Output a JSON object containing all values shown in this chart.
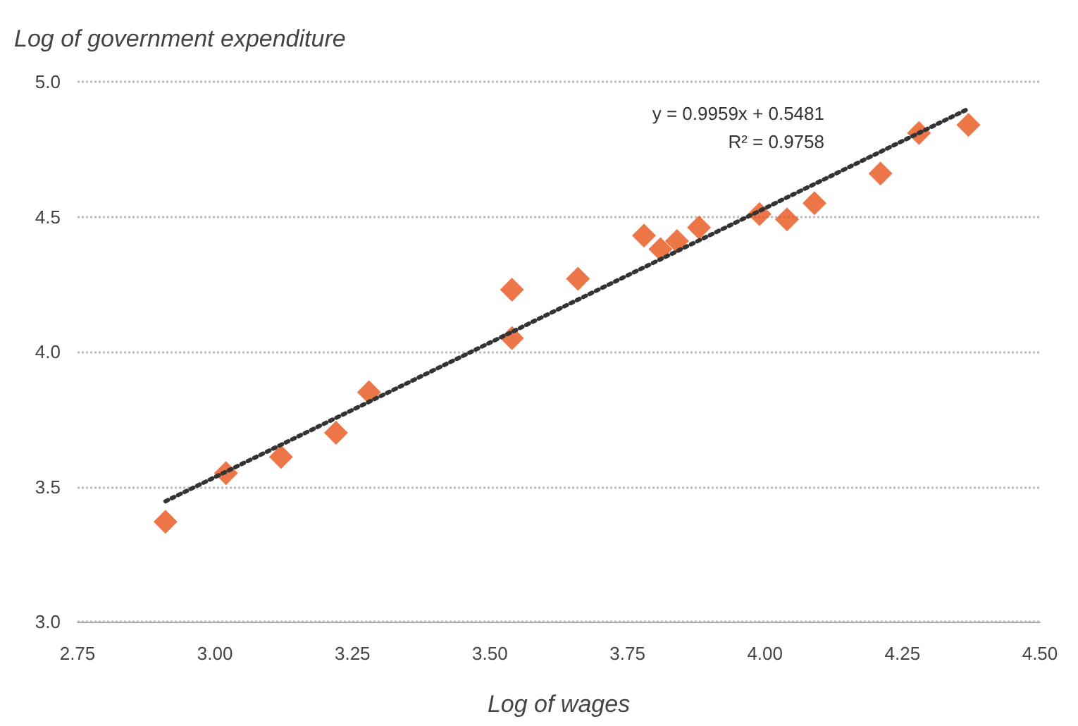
{
  "chart_data": {
    "type": "scatter",
    "ylabel": "Log of government expenditure",
    "xlabel": "Log of wages",
    "annotations": [
      "y = 0.9959x + 0.5481",
      "R² = 0.9758"
    ],
    "series": [
      {
        "color": "#e8541c",
        "marker": "diamond",
        "x": [
          2.91,
          3.02,
          3.12,
          3.22,
          3.28,
          3.54,
          3.54,
          3.66,
          3.78,
          3.81,
          3.84,
          3.88,
          3.99,
          4.04,
          4.09,
          4.21,
          4.28,
          4.37
        ],
        "values": [
          3.37,
          3.55,
          3.61,
          3.7,
          3.85,
          4.23,
          4.05,
          4.27,
          4.43,
          4.38,
          4.41,
          4.46,
          4.51,
          4.49,
          4.55,
          4.66,
          4.81,
          4.84
        ]
      },
      {
        "type": "line",
        "color": "#333333",
        "marker": "none",
        "line_style": "dotted",
        "x": [
          2.91,
          4.37
        ],
        "values": [
          3.446,
          4.9
        ]
      }
    ],
    "xlim": [
      2.75,
      4.5
    ],
    "xticks": [
      {
        "value": 2.75,
        "label": "2.75"
      },
      {
        "value": 3,
        "label": "3.00"
      },
      {
        "value": 3.25,
        "label": "3.25"
      },
      {
        "value": 3.5,
        "label": "3.50"
      },
      {
        "value": 3.75,
        "label": "3.75"
      },
      {
        "value": 4,
        "label": "4.00"
      },
      {
        "value": 4.25,
        "label": "4.25"
      },
      {
        "value": 4.5,
        "label": "4.50"
      }
    ],
    "ylim": [
      3,
      5
    ],
    "yticks": [
      {
        "value": 3,
        "label": "3.0"
      },
      {
        "value": 3.5,
        "label": "3.5"
      },
      {
        "value": 4,
        "label": "4.0"
      },
      {
        "value": 4.5,
        "label": "4.5"
      },
      {
        "value": 5,
        "label": "5.0"
      }
    ],
    "grid": "y"
  }
}
